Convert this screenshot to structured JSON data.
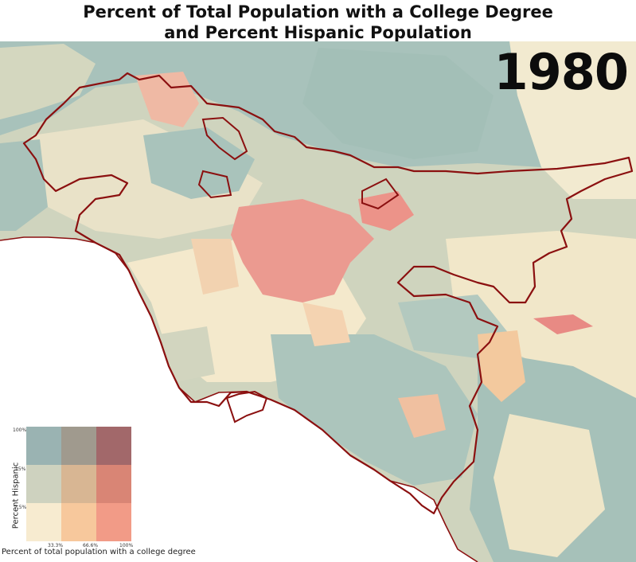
{
  "title": {
    "line1": "Percent of Total Population with a College Degree",
    "line2": "and Percent Hispanic Population"
  },
  "year": "1980",
  "legend": {
    "y_label": "Percent Hispanic",
    "x_label": "Percent of total population with a college degree",
    "y_ticks": [
      "100%",
      "15%",
      "7.5%"
    ],
    "x_ticks": [
      "33.3%",
      "66.6%",
      "100%"
    ],
    "colors": [
      [
        "#9ab3b2",
        "#a09a8e",
        "#a2686a"
      ],
      [
        "#ced2bf",
        "#d8b693",
        "#d98575"
      ],
      [
        "#f7ebd0",
        "#f7c89c",
        "#f29b87"
      ]
    ]
  },
  "palette": {
    "boundary": "#8b1010",
    "ocean": "#ffffff",
    "teal": "#a7c2bb",
    "sage": "#d5d8c2",
    "cream": "#f6eccd",
    "peach": "#f4cfa6",
    "salmon": "#ec9a8c"
  }
}
